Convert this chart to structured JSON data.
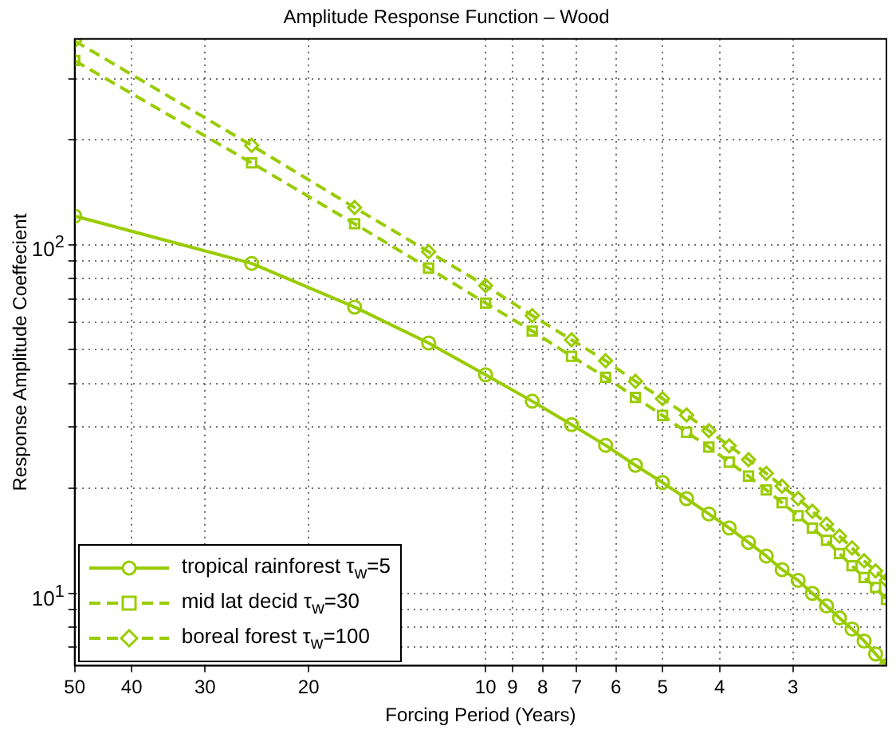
{
  "chart_data": {
    "type": "line",
    "title": "Amplitude Response Function – Wood",
    "xlabel": "Forcing Period (Years)",
    "ylabel": "Response Amplitude Coeffecient",
    "x": [
      50,
      25,
      16.7,
      12.5,
      10,
      8.33,
      7.14,
      6.25,
      5.56,
      5,
      4.55,
      4.17,
      3.85,
      3.57,
      3.33,
      3.13,
      2.94,
      2.78,
      2.63,
      2.5,
      2.38,
      2.27,
      2.17,
      2.08
    ],
    "series": [
      {
        "name": "tropical rainforest τ$_{w}$=5",
        "color": "#99cc00",
        "marker": "circle",
        "line_style": "solid",
        "values": [
          121,
          88.5,
          66.3,
          52.3,
          42.4,
          35.6,
          30.5,
          26.6,
          23.3,
          20.8,
          18.7,
          16.9,
          15.4,
          14.0,
          12.8,
          11.7,
          10.9,
          10.0,
          9.2,
          8.5,
          7.9,
          7.3,
          6.7,
          6.2
        ]
      },
      {
        "name": "mid lat decid τ$_{w}$=30",
        "color": "#99cc00",
        "marker": "square",
        "line_style": "dashed",
        "values": [
          338,
          172,
          115,
          85.8,
          68.1,
          56.6,
          47.9,
          41.7,
          36.5,
          32.4,
          29.0,
          26.3,
          23.8,
          21.7,
          19.8,
          18.2,
          16.7,
          15.4,
          14.2,
          13.0,
          12.0,
          11.1,
          10.4,
          9.6
        ]
      },
      {
        "name": "boreal forest τ$_{w}$=100",
        "color": "#99cc00",
        "marker": "diamond",
        "line_style": "dashed",
        "values": [
          385,
          193,
          128,
          95.6,
          76.4,
          62.7,
          53.4,
          46.5,
          40.6,
          36.2,
          32.5,
          29.3,
          26.5,
          24.2,
          22.1,
          20.3,
          18.7,
          17.2,
          15.8,
          14.6,
          13.5,
          12.4,
          11.6,
          10.9
        ]
      }
    ],
    "log": "xy",
    "xlim": [
      50,
      2.08
    ],
    "ylim": [
      6.2,
      390
    ],
    "xticks": [
      50,
      40,
      30,
      20,
      10,
      9,
      8,
      7,
      6,
      5,
      4,
      3
    ],
    "yticks": [
      {
        "value": 7,
        "label": null
      },
      {
        "value": 8,
        "label": null
      },
      {
        "value": 9,
        "label": null
      },
      {
        "value": 10,
        "label": "10$^{1}$"
      },
      {
        "value": 20,
        "label": null
      },
      {
        "value": 30,
        "label": null
      },
      {
        "value": 40,
        "label": null
      },
      {
        "value": 50,
        "label": null
      },
      {
        "value": 60,
        "label": null
      },
      {
        "value": 70,
        "label": null
      },
      {
        "value": 80,
        "label": null
      },
      {
        "value": 90,
        "label": null
      },
      {
        "value": 100,
        "label": "10$^{2}$"
      },
      {
        "value": 200,
        "label": null
      },
      {
        "value": 300,
        "label": null
      }
    ],
    "grid": true,
    "legend": "bottom left"
  }
}
